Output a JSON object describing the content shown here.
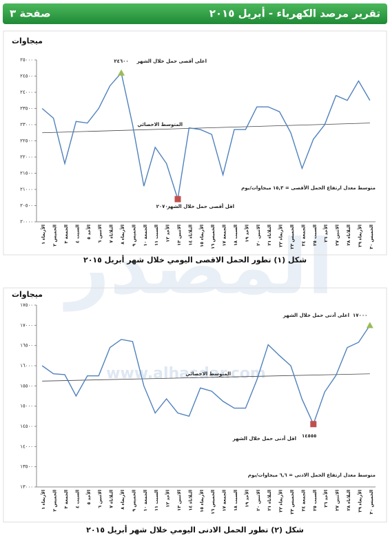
{
  "header": {
    "title": "تقرير مرصد الكهرباء - أبريل ٢٠١٥",
    "page": "صفحة ٣"
  },
  "watermark": {
    "text": "المصدر",
    "url": "www.alhasdar.com"
  },
  "chart_data": [
    {
      "type": "line",
      "y_label": "ميجاوات",
      "caption": "شكل (١) تطور الحمل الاقصى اليومي خلال شهر أبريل ٢٠١٥",
      "categories": [
        "الأربعاء ١",
        "الخميس ٢",
        "الجمعة ٣",
        "السبت ٤",
        "الأحد ٥",
        "الاثنين ٦",
        "الثلاثاء ٧",
        "الأربعاء ٨",
        "الخميس ٩",
        "الجمعة ١٠",
        "السبت ١١",
        "الأحد ١٢",
        "الاثنين ١٣",
        "الثلاثاء ١٤",
        "الأربعاء ١٥",
        "الخميس ١٦",
        "الجمعة ١٧",
        "السبت ١٨",
        "الأحد ١٩",
        "الاثنين ٢٠",
        "الثلاثاء ٢١",
        "الأربعاء ٢٢",
        "الخميس ٢٣",
        "الجمعة ٢٤",
        "السبت ٢٥",
        "الأحد ٢٦",
        "الاثنين ٢٧",
        "الثلاثاء ٢٨",
        "الأربعاء ٢٩",
        "الخميس ٣٠"
      ],
      "values": [
        23500,
        23200,
        21800,
        23100,
        23050,
        23500,
        24200,
        24600,
        23000,
        21100,
        22300,
        21800,
        20700,
        22900,
        22850,
        22700,
        21450,
        22850,
        22850,
        23550,
        23550,
        23400,
        22750,
        21650,
        22550,
        23000,
        23900,
        23750,
        24350,
        23750
      ],
      "color": "#4f81bd",
      "trend": {
        "name": "المتوسط الاحصائي",
        "values": [
          22750,
          23050
        ],
        "color": "#404040"
      },
      "max_marker_color": "#9bbb59",
      "min_marker_color": "#c0504d",
      "ylim": [
        20000,
        25000
      ],
      "yticks": [
        {
          "value": 20000,
          "label": "٢٠٠٠٠"
        },
        {
          "value": 20500,
          "label": "٢٠٥٠٠"
        },
        {
          "value": 21000,
          "label": "٢١٠٠٠"
        },
        {
          "value": 21500,
          "label": "٢١٥٠٠"
        },
        {
          "value": 22000,
          "label": "٢٢٠٠٠"
        },
        {
          "value": 22500,
          "label": "٢٢٥٠٠"
        },
        {
          "value": 23000,
          "label": "٢٣٠٠٠"
        },
        {
          "value": 23500,
          "label": "٢٣٥٠٠"
        },
        {
          "value": 24000,
          "label": "٢٤٠٠٠"
        },
        {
          "value": 24500,
          "label": "٢٤٥٠٠"
        },
        {
          "value": 25000,
          "label": "٢٥٠٠٠"
        }
      ],
      "annotations": [
        "اعلى  أقصى حمل خلال الشهر",
        "٢٤٦٠٠",
        "متوسط معدل ارتفاع الحمل الأقصى = ١٥,٣ ميجاوات/يوم",
        "اقل أقصى حمل خلال الشهر",
        "٢٠٧٠٠"
      ]
    },
    {
      "type": "line",
      "y_label": "ميجاوات",
      "caption": "شكل (٢) تطور الحمل الادنى اليومي خلال شهر أبريل ٢٠١٥",
      "categories": [
        "الأربعاء ١",
        "الخميس ٢",
        "الجمعة ٣",
        "السبت ٤",
        "الأحد ٥",
        "الاثنين ٦",
        "الثلاثاء ٧",
        "الأربعاء ٨",
        "الخميس ٩",
        "الجمعة ١٠",
        "السبت ١١",
        "الأحد ١٢",
        "الاثنين ١٣",
        "الثلاثاء ١٤",
        "الأربعاء ١٥",
        "الخميس ١٦",
        "الجمعة ١٧",
        "السبت ١٨",
        "الأحد ١٩",
        "الاثنين ٢٠",
        "الثلاثاء ٢١",
        "الأربعاء ٢٢",
        "الخميس ٢٣",
        "الجمعة ٢٤",
        "السبت ٢٥",
        "الأحد ٢٦",
        "الاثنين ٢٧",
        "الثلاثاء ٢٨",
        "الأربعاء ٢٩",
        "الخميس ٣٠"
      ],
      "values": [
        16000,
        15800,
        15780,
        15250,
        15750,
        15750,
        16450,
        16650,
        16600,
        15500,
        14830,
        15180,
        14830,
        14750,
        15450,
        15370,
        15120,
        14950,
        14950,
        15650,
        16520,
        16250,
        16000,
        15170,
        14555,
        15350,
        15760,
        16450,
        16580,
        17000
      ],
      "color": "#4f81bd",
      "trend": {
        "name": "المتوسط الاحصائي",
        "values": [
          15620,
          15800
        ],
        "color": "#404040"
      },
      "max_marker_color": "#9bbb59",
      "min_marker_color": "#c0504d",
      "ylim": [
        13000,
        17500
      ],
      "yticks": [
        {
          "value": 13000,
          "label": "١٣٠٠٠"
        },
        {
          "value": 13500,
          "label": "١٣٥٠٠"
        },
        {
          "value": 14000,
          "label": "١٤٠٠٠"
        },
        {
          "value": 14500,
          "label": "١٤٥٠٠"
        },
        {
          "value": 15000,
          "label": "١٥٠٠٠"
        },
        {
          "value": 15500,
          "label": "١٥٥٠٠"
        },
        {
          "value": 16000,
          "label": "١٦٠٠٠"
        },
        {
          "value": 16500,
          "label": "١٦٥٠٠"
        },
        {
          "value": 17000,
          "label": "١٧٠٠٠"
        },
        {
          "value": 17500,
          "label": "١٧٥٠٠"
        }
      ],
      "annotations": [
        "اعلى  أدنى حمل خلال الشهر",
        "١٧٠٠٠",
        "متوسط معدل ارتفاع الحمل الادنى = ٦,٦ ميجاوات/يوم",
        "اقل  أدنى حمل خلال الشهر",
        "١٤٥٥٥"
      ]
    }
  ]
}
